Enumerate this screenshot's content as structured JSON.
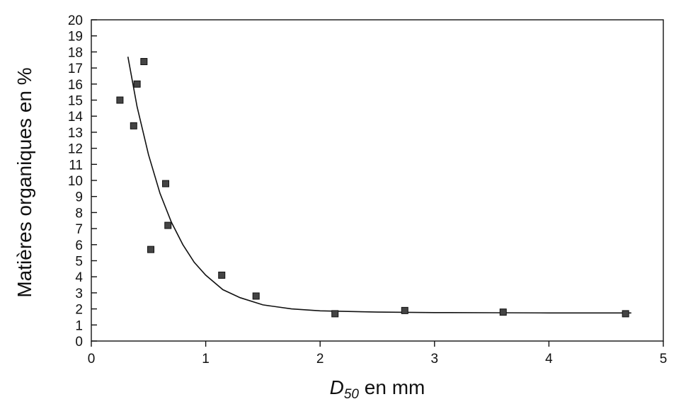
{
  "chart_data": {
    "type": "scatter",
    "xlabel_main": "D",
    "xlabel_sub": "50",
    "xlabel_rest": " en mm",
    "ylabel": "Matières organiques en %",
    "xlim": [
      0,
      5
    ],
    "ylim": [
      0,
      20
    ],
    "xticks": [
      "0",
      "1",
      "2",
      "3",
      "4",
      "5"
    ],
    "yticks": [
      "0",
      "1",
      "2",
      "3",
      "4",
      "5",
      "6",
      "7",
      "8",
      "9",
      "10",
      "11",
      "12",
      "13",
      "14",
      "15",
      "16",
      "17",
      "18",
      "19",
      "20"
    ],
    "grid": false,
    "points": [
      {
        "x": 0.25,
        "y": 15.0
      },
      {
        "x": 0.37,
        "y": 13.4
      },
      {
        "x": 0.4,
        "y": 16.0
      },
      {
        "x": 0.46,
        "y": 17.4
      },
      {
        "x": 0.52,
        "y": 5.7
      },
      {
        "x": 0.65,
        "y": 9.8
      },
      {
        "x": 0.67,
        "y": 7.2
      },
      {
        "x": 1.14,
        "y": 4.1
      },
      {
        "x": 1.44,
        "y": 2.8
      },
      {
        "x": 2.13,
        "y": 1.7
      },
      {
        "x": 2.74,
        "y": 1.9
      },
      {
        "x": 3.6,
        "y": 1.8
      },
      {
        "x": 4.67,
        "y": 1.7
      }
    ],
    "fit_curve": [
      {
        "x": 0.32,
        "y": 17.7
      },
      {
        "x": 0.4,
        "y": 14.6
      },
      {
        "x": 0.5,
        "y": 11.6
      },
      {
        "x": 0.6,
        "y": 9.2
      },
      {
        "x": 0.7,
        "y": 7.4
      },
      {
        "x": 0.8,
        "y": 6.0
      },
      {
        "x": 0.9,
        "y": 4.9
      },
      {
        "x": 1.0,
        "y": 4.1
      },
      {
        "x": 1.15,
        "y": 3.2
      },
      {
        "x": 1.3,
        "y": 2.7
      },
      {
        "x": 1.5,
        "y": 2.25
      },
      {
        "x": 1.75,
        "y": 2.0
      },
      {
        "x": 2.0,
        "y": 1.88
      },
      {
        "x": 2.5,
        "y": 1.8
      },
      {
        "x": 3.0,
        "y": 1.77
      },
      {
        "x": 3.5,
        "y": 1.76
      },
      {
        "x": 4.0,
        "y": 1.75
      },
      {
        "x": 4.5,
        "y": 1.75
      },
      {
        "x": 4.72,
        "y": 1.75
      }
    ]
  }
}
